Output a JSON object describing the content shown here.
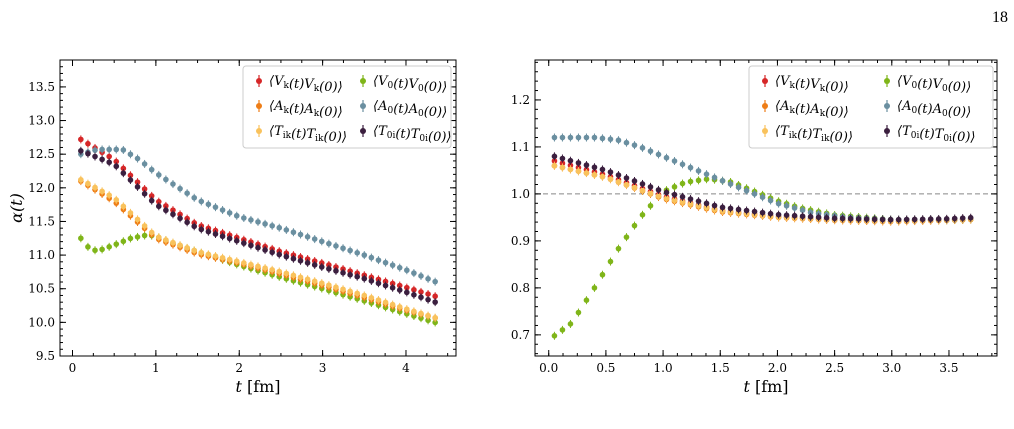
{
  "page_number": "18",
  "chart_data": [
    {
      "type": "scatter",
      "title": "",
      "xlabel": "t [fm]",
      "ylabel": "α(t)",
      "xlim": [
        -0.15,
        4.6
      ],
      "ylim": [
        9.5,
        13.9
      ],
      "xticks": [
        0,
        1,
        2,
        3,
        4
      ],
      "xtick_labels": [
        "0",
        "1",
        "2",
        "3",
        "4"
      ],
      "yticks": [
        9.5,
        10.0,
        10.5,
        11.0,
        11.5,
        12.0,
        12.5,
        13.0,
        13.5
      ],
      "ytick_labels": [
        "9.5",
        "10.0",
        "10.5",
        "11.0",
        "11.5",
        "12.0",
        "12.5",
        "13.0",
        "13.5"
      ],
      "reference_line": null,
      "legend_position": "top-right",
      "grid": false,
      "series": [
        {
          "name": "⟨V_k(t)V_k(0)⟩",
          "color": "#d62728",
          "x": [
            0.1,
            0.5,
            1.0,
            1.5,
            2.0,
            2.5,
            3.0,
            3.5,
            4.0,
            4.4
          ],
          "y": [
            12.72,
            12.42,
            11.82,
            11.45,
            11.25,
            11.05,
            10.88,
            10.7,
            10.52,
            10.37
          ]
        },
        {
          "name": "⟨V_0(t)V_0(0)⟩",
          "color": "#7fb519",
          "x": [
            0.1,
            0.2,
            0.3,
            0.5,
            0.7,
            0.9,
            1.0,
            1.2,
            1.5,
            2.0,
            2.5,
            3.0,
            3.5,
            4.0,
            4.4
          ],
          "y": [
            11.25,
            11.1,
            11.06,
            11.15,
            11.25,
            11.3,
            11.28,
            11.18,
            11.05,
            10.85,
            10.67,
            10.5,
            10.32,
            10.13,
            9.98
          ]
        },
        {
          "name": "⟨A_k(t)A_k(0)⟩",
          "color": "#ee7d16",
          "x": [
            0.1,
            0.5,
            1.0,
            1.5,
            2.0,
            2.5,
            3.0,
            3.5,
            4.0,
            4.4
          ],
          "y": [
            12.1,
            11.8,
            11.25,
            11.02,
            10.88,
            10.72,
            10.55,
            10.37,
            10.18,
            10.05
          ]
        },
        {
          "name": "⟨A_0(t)A_0(0)⟩",
          "color": "#6a8fa0",
          "x": [
            0.1,
            0.3,
            0.6,
            0.8,
            1.0,
            1.5,
            2.0,
            2.5,
            3.0,
            3.5,
            4.0,
            4.4
          ],
          "y": [
            12.5,
            12.57,
            12.57,
            12.42,
            12.22,
            11.82,
            11.57,
            11.4,
            11.2,
            11.0,
            10.78,
            10.58
          ]
        },
        {
          "name": "⟨T_ik(t)T_ik(0)⟩",
          "color": "#f9c25c",
          "x": [
            0.1,
            0.5,
            1.0,
            1.5,
            2.0,
            2.5,
            3.0,
            3.5,
            4.0,
            4.4
          ],
          "y": [
            12.12,
            11.85,
            11.28,
            11.05,
            10.9,
            10.75,
            10.58,
            10.4,
            10.2,
            10.05
          ]
        },
        {
          "name": "⟨T_0i(t)T_0i(0)⟩",
          "color": "#3b1f3f",
          "x": [
            0.1,
            0.5,
            1.0,
            1.5,
            2.0,
            2.5,
            3.0,
            3.5,
            4.0,
            4.4
          ],
          "y": [
            12.55,
            12.35,
            11.75,
            11.4,
            11.2,
            11.0,
            10.82,
            10.65,
            10.45,
            10.28
          ]
        }
      ]
    },
    {
      "type": "scatter",
      "title": "",
      "xlabel": "t [fm]",
      "ylabel": "",
      "xlim": [
        -0.12,
        3.92
      ],
      "ylim": [
        0.655,
        1.285
      ],
      "xticks": [
        0.0,
        0.5,
        1.0,
        1.5,
        2.0,
        2.5,
        3.0,
        3.5
      ],
      "xtick_labels": [
        "0.0",
        "0.5",
        "1.0",
        "1.5",
        "2.0",
        "2.5",
        "3.0",
        "3.5"
      ],
      "yticks": [
        0.7,
        0.8,
        0.9,
        1.0,
        1.1,
        1.2
      ],
      "ytick_labels": [
        "0.7",
        "0.8",
        "0.9",
        "1.0",
        "1.1",
        "1.2"
      ],
      "reference_line": 1.0,
      "legend_position": "top-right",
      "grid": false,
      "series": [
        {
          "name": "⟨V_k(t)V_k(0)⟩",
          "color": "#d62728",
          "x": [
            0.05,
            0.5,
            1.0,
            1.5,
            2.0,
            2.5,
            3.0,
            3.5,
            3.75
          ],
          "y": [
            1.07,
            1.04,
            0.995,
            0.965,
            0.952,
            0.945,
            0.942,
            0.945,
            0.948
          ]
        },
        {
          "name": "⟨V_0(t)V_0(0)⟩",
          "color": "#7fb519",
          "x": [
            0.05,
            0.2,
            0.4,
            0.6,
            0.8,
            1.0,
            1.2,
            1.4,
            1.6,
            1.8,
            2.0,
            2.2,
            2.5,
            3.0,
            3.5,
            3.75
          ],
          "y": [
            0.698,
            0.725,
            0.8,
            0.88,
            0.95,
            1.005,
            1.025,
            1.032,
            1.025,
            1.005,
            0.985,
            0.97,
            0.955,
            0.945,
            0.944,
            0.946
          ]
        },
        {
          "name": "⟨A_k(t)A_k(0)⟩",
          "color": "#ee7d16",
          "x": [
            0.05,
            0.5,
            1.0,
            1.5,
            2.0,
            2.5,
            3.0,
            3.5,
            3.75
          ],
          "y": [
            1.06,
            1.035,
            0.99,
            0.962,
            0.95,
            0.944,
            0.941,
            0.944,
            0.946
          ]
        },
        {
          "name": "⟨A_0(t)A_0(0)⟩",
          "color": "#6a8fa0",
          "x": [
            0.05,
            0.2,
            0.4,
            0.6,
            0.8,
            1.0,
            1.2,
            1.4,
            1.6,
            1.8,
            2.0,
            2.3,
            2.6,
            3.0,
            3.5,
            3.75
          ],
          "y": [
            1.12,
            1.12,
            1.12,
            1.115,
            1.1,
            1.08,
            1.06,
            1.04,
            1.02,
            1.0,
            0.98,
            0.96,
            0.95,
            0.945,
            0.945,
            0.948
          ]
        },
        {
          "name": "⟨T_ik(t)T_ik(0)⟩",
          "color": "#f9c25c",
          "x": [
            0.05,
            0.5,
            1.0,
            1.5,
            2.0,
            2.5,
            3.0,
            3.5,
            3.75
          ],
          "y": [
            1.06,
            1.035,
            0.992,
            0.964,
            0.951,
            0.945,
            0.942,
            0.945,
            0.947
          ]
        },
        {
          "name": "⟨T_0i(t)T_0i(0)⟩",
          "color": "#3b1f3f",
          "x": [
            0.05,
            0.5,
            1.0,
            1.5,
            2.0,
            2.5,
            3.0,
            3.5,
            3.75
          ],
          "y": [
            1.08,
            1.05,
            1.005,
            0.972,
            0.956,
            0.948,
            0.945,
            0.947,
            0.95
          ]
        }
      ]
    }
  ]
}
